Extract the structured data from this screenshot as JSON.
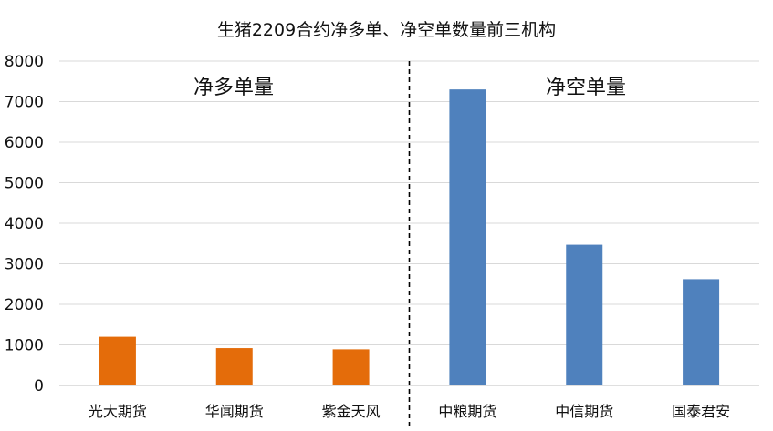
{
  "chart_data": {
    "type": "bar",
    "title": "生猪2209合约净多单、净空单数量前三机构",
    "xlabel": "",
    "ylabel": "",
    "ylim": [
      0,
      8000
    ],
    "yticks": [
      0,
      1000,
      2000,
      3000,
      4000,
      5000,
      6000,
      7000,
      8000
    ],
    "grid": true,
    "categories": [
      "光大期货",
      "华闻期货",
      "紫金天风",
      "中粮期货",
      "中信期货",
      "国泰君安"
    ],
    "values": [
      1200,
      920,
      890,
      7300,
      3470,
      2620
    ],
    "groups": [
      {
        "label": "净多单量",
        "categories": [
          "光大期货",
          "华闻期货",
          "紫金天风"
        ],
        "color": "#E46C0A"
      },
      {
        "label": "净空单量",
        "categories": [
          "中粮期货",
          "中信期货",
          "国泰君安"
        ],
        "color": "#4F81BD"
      }
    ],
    "bar_colors": [
      "#E46C0A",
      "#E46C0A",
      "#E46C0A",
      "#4F81BD",
      "#4F81BD",
      "#4F81BD"
    ],
    "divider": "dashed line between 紫金天风 and 中粮期货"
  }
}
